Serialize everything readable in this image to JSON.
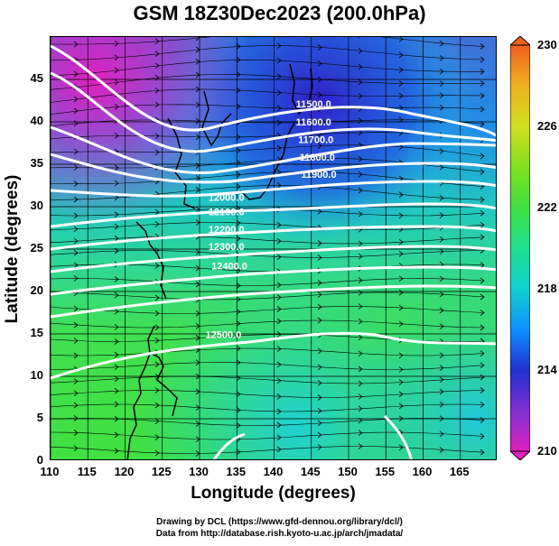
{
  "title": "GSM 18Z30Dec2023 (200.0hPa)",
  "x_axis": {
    "label": "Longitude (degrees)",
    "ticks": [
      "110",
      "115",
      "120",
      "125",
      "130",
      "135",
      "140",
      "145",
      "150",
      "155",
      "160",
      "165"
    ],
    "range": [
      110,
      170
    ]
  },
  "y_axis": {
    "label": "Latitude  (degrees)",
    "ticks": [
      "0",
      "5",
      "10",
      "15",
      "20",
      "25",
      "30",
      "35",
      "40",
      "45"
    ],
    "range": [
      0,
      50
    ]
  },
  "colorbar": {
    "ticks": [
      "210",
      "214",
      "218",
      "222",
      "226",
      "230"
    ],
    "range": [
      210,
      230
    ],
    "colors": [
      "#e020c0",
      "#8030d0",
      "#2030d0",
      "#1090ff",
      "#10d0d0",
      "#20e090",
      "#40e040",
      "#80e020",
      "#d0e020",
      "#f0b020",
      "#f06020"
    ]
  },
  "contours": {
    "color": "#ffffff",
    "labels": [
      {
        "text": "11500.0",
        "lon": 145.3,
        "lat": 41.7
      },
      {
        "text": "11600.0",
        "lon": 145.3,
        "lat": 39.6
      },
      {
        "text": "11700.0",
        "lon": 145.6,
        "lat": 37.5
      },
      {
        "text": "11800.0",
        "lon": 145.8,
        "lat": 35.4
      },
      {
        "text": "11900.0",
        "lon": 146.0,
        "lat": 33.4
      },
      {
        "text": "12000.0",
        "lon": 133.6,
        "lat": 30.7
      },
      {
        "text": "12100.0",
        "lon": 133.6,
        "lat": 29.0
      },
      {
        "text": "12200.0",
        "lon": 133.6,
        "lat": 26.9
      },
      {
        "text": "12300.0",
        "lon": 133.6,
        "lat": 24.9
      },
      {
        "text": "12400.0",
        "lon": 134.0,
        "lat": 22.6
      },
      {
        "text": "12500.0",
        "lon": 133.2,
        "lat": 14.5
      }
    ]
  },
  "credits": {
    "line1": "Drawing by DCL (https://www.gfd-dennou.org/library/dcl/)",
    "line2": "Data from http://database.rish.kyoto-u.ac.jp/arch/jmadata/"
  }
}
